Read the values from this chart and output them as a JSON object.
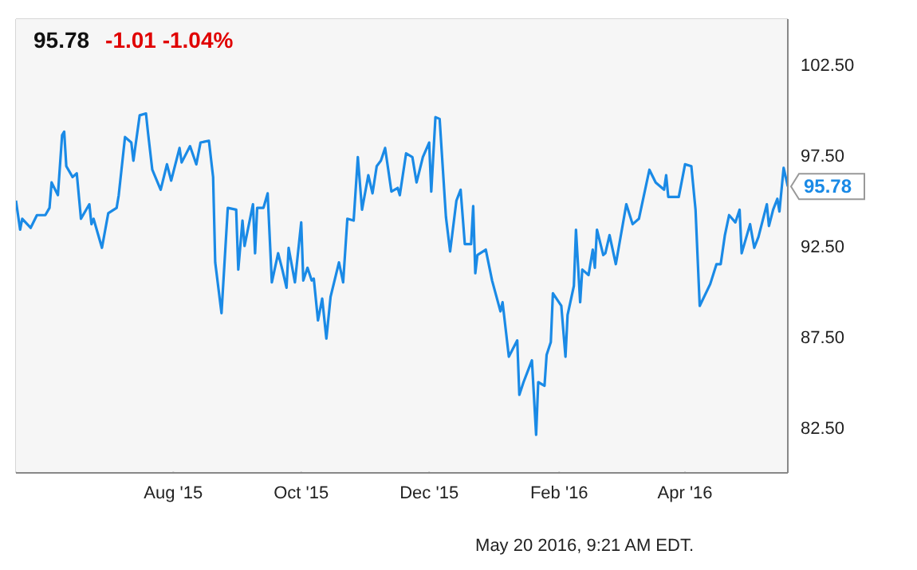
{
  "chart_data": {
    "type": "line",
    "title": "95.78",
    "subtitle": "-1.01 -1.04%",
    "annotations": [
      {
        "text": "95.78",
        "x": "2016-05-20",
        "y": 95.78
      },
      "May 20 2016, 9:21 AM EDT."
    ],
    "x": [
      "2015-05-18",
      "2015-05-20",
      "2015-05-21",
      "2015-05-25",
      "2015-05-28",
      "2015-06-01",
      "2015-06-03",
      "2015-06-04",
      "2015-06-07",
      "2015-06-09",
      "2015-06-10",
      "2015-06-11",
      "2015-06-14",
      "2015-06-16",
      "2015-06-18",
      "2015-06-22",
      "2015-06-23",
      "2015-06-24",
      "2015-06-28",
      "2015-07-01",
      "2015-07-05",
      "2015-07-06",
      "2015-07-09",
      "2015-07-12",
      "2015-07-13",
      "2015-07-16",
      "2015-07-19",
      "2015-07-20",
      "2015-07-22",
      "2015-07-26",
      "2015-07-29",
      "2015-07-31",
      "2015-08-04",
      "2015-08-05",
      "2015-08-09",
      "2015-08-12",
      "2015-08-14",
      "2015-08-18",
      "2015-08-20",
      "2015-08-21",
      "2015-08-24",
      "2015-08-27",
      "2015-08-31",
      "2015-09-01",
      "2015-09-03",
      "2015-09-04",
      "2015-09-08",
      "2015-09-09",
      "2015-09-10",
      "2015-09-13",
      "2015-09-15",
      "2015-09-17",
      "2015-09-20",
      "2015-09-22",
      "2015-09-24",
      "2015-09-25",
      "2015-09-28",
      "2015-10-01",
      "2015-10-02",
      "2015-10-04",
      "2015-10-06",
      "2015-10-07",
      "2015-10-09",
      "2015-10-11",
      "2015-10-13",
      "2015-10-15",
      "2015-10-19",
      "2015-10-21",
      "2015-10-23",
      "2015-10-26",
      "2015-10-28",
      "2015-10-30",
      "2015-11-02",
      "2015-11-04",
      "2015-11-06",
      "2015-11-08",
      "2015-11-10",
      "2015-11-13",
      "2015-11-16",
      "2015-11-17",
      "2015-11-20",
      "2015-11-23",
      "2015-11-25",
      "2015-11-28",
      "2015-12-01",
      "2015-12-02",
      "2015-12-04",
      "2015-12-06",
      "2015-12-09",
      "2015-12-11",
      "2015-12-14",
      "2015-12-16",
      "2015-12-18",
      "2015-12-21",
      "2015-12-22",
      "2015-12-23",
      "2015-12-24",
      "2015-12-28",
      "2015-12-31",
      "2016-01-04",
      "2016-01-05",
      "2016-01-08",
      "2016-01-12",
      "2016-01-13",
      "2016-01-15",
      "2016-01-19",
      "2016-01-21",
      "2016-01-22",
      "2016-01-25",
      "2016-01-26",
      "2016-01-28",
      "2016-01-29",
      "2016-02-02",
      "2016-02-04",
      "2016-02-05",
      "2016-02-08",
      "2016-02-09",
      "2016-02-11",
      "2016-02-12",
      "2016-02-15",
      "2016-02-17",
      "2016-02-18",
      "2016-02-19",
      "2016-02-22",
      "2016-02-23",
      "2016-02-25",
      "2016-02-28",
      "2016-03-04",
      "2016-03-07",
      "2016-03-10",
      "2016-03-15",
      "2016-03-18",
      "2016-03-22",
      "2016-03-23",
      "2016-03-24",
      "2016-03-29",
      "2016-04-01",
      "2016-04-04",
      "2016-04-06",
      "2016-04-08",
      "2016-04-13",
      "2016-04-16",
      "2016-04-18",
      "2016-04-20",
      "2016-04-22",
      "2016-04-25",
      "2016-04-27",
      "2016-04-28",
      "2016-05-02",
      "2016-05-04",
      "2016-05-06",
      "2016-05-10",
      "2016-05-11",
      "2016-05-13",
      "2016-05-15",
      "2016-05-16",
      "2016-05-18",
      "2016-05-20"
    ],
    "series": [
      {
        "color": "#1a8ae6",
        "values": [
          95.0,
          93.4,
          94.0,
          93.5,
          94.2,
          94.2,
          94.6,
          96.0,
          95.3,
          98.6,
          98.8,
          96.9,
          96.3,
          96.5,
          94.0,
          94.8,
          93.7,
          94.0,
          92.4,
          94.3,
          94.6,
          95.3,
          98.5,
          98.2,
          97.2,
          99.7,
          99.8,
          98.7,
          96.7,
          95.6,
          97.0,
          96.1,
          97.9,
          97.1,
          98.0,
          97.0,
          98.2,
          98.3,
          96.3,
          91.6,
          88.8,
          94.6,
          94.5,
          91.2,
          93.9,
          92.5,
          94.8,
          92.1,
          94.6,
          94.6,
          95.4,
          90.5,
          92.1,
          91.2,
          90.2,
          92.4,
          90.5,
          93.8,
          90.6,
          91.3,
          90.6,
          90.7,
          88.4,
          89.6,
          87.4,
          89.7,
          91.6,
          90.5,
          94.0,
          93.9,
          97.4,
          94.5,
          96.4,
          95.4,
          96.9,
          97.2,
          97.9,
          95.5,
          95.7,
          95.3,
          97.6,
          97.4,
          96.0,
          97.4,
          98.2,
          95.5,
          99.6,
          99.5,
          94.1,
          92.2,
          95.0,
          95.6,
          92.6,
          92.6,
          94.7,
          91.0,
          92.0,
          92.3,
          90.6,
          88.9,
          89.4,
          86.4,
          87.3,
          84.3,
          85.0,
          86.2,
          82.1,
          85.0,
          84.8,
          86.5,
          87.2,
          89.9,
          89.2,
          86.4,
          88.7,
          90.3,
          93.4,
          89.4,
          91.2,
          90.9,
          92.3,
          91.3,
          93.4,
          92.0,
          92.1,
          93.1,
          91.5,
          94.8,
          93.7,
          94.0,
          96.7,
          96.0,
          95.6,
          96.4,
          95.2,
          95.2,
          97.0,
          96.9,
          94.5,
          89.2,
          90.4,
          91.5,
          91.5,
          93.1,
          94.2,
          93.8,
          94.5,
          92.1,
          93.7,
          92.4,
          93.0,
          94.8,
          93.6,
          94.5,
          95.1,
          94.4,
          96.8,
          95.78
        ]
      }
    ],
    "xlim": [
      "2015-05-18",
      "2016-05-20"
    ],
    "xticks": [
      {
        "value": "2015-08-01",
        "label": "Aug '15"
      },
      {
        "value": "2015-10-01",
        "label": "Oct '15"
      },
      {
        "value": "2015-12-01",
        "label": "Dec '15"
      },
      {
        "value": "2016-02-01",
        "label": "Feb '16"
      },
      {
        "value": "2016-04-01",
        "label": "Apr '16"
      }
    ],
    "ylim": [
      80,
      105
    ],
    "yticks": [
      {
        "value": 82.5,
        "label": "82.50"
      },
      {
        "value": 87.5,
        "label": "87.50"
      },
      {
        "value": 92.5,
        "label": "92.50"
      },
      {
        "value": 97.5,
        "label": "97.50"
      },
      {
        "value": 102.5,
        "label": "102.50"
      }
    ],
    "grid": true,
    "marker": "none",
    "line_style": "solid"
  }
}
